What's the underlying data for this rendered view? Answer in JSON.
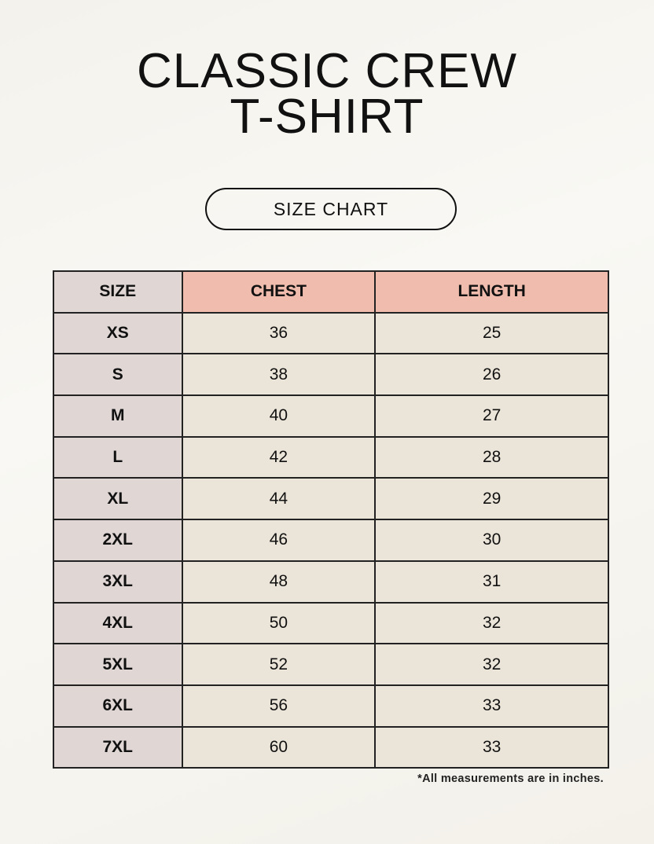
{
  "title_line1": "CLASSIC CREW",
  "title_line2": "T-SHIRT",
  "badge": "SIZE CHART",
  "table": {
    "headers": [
      "SIZE",
      "CHEST",
      "LENGTH"
    ],
    "rows": [
      [
        "XS",
        "36",
        "25"
      ],
      [
        "S",
        "38",
        "26"
      ],
      [
        "M",
        "40",
        "27"
      ],
      [
        "L",
        "42",
        "28"
      ],
      [
        "XL",
        "44",
        "29"
      ],
      [
        "2XL",
        "46",
        "30"
      ],
      [
        "3XL",
        "48",
        "31"
      ],
      [
        "4XL",
        "50",
        "32"
      ],
      [
        "5XL",
        "52",
        "32"
      ],
      [
        "6XL",
        "56",
        "33"
      ],
      [
        "7XL",
        "60",
        "33"
      ]
    ]
  },
  "footnote": "*All measurements are in inches.",
  "colors": {
    "header_accent": "#efbcad",
    "size_column": "#e0d7d5",
    "cell": "#ebe4d8"
  }
}
